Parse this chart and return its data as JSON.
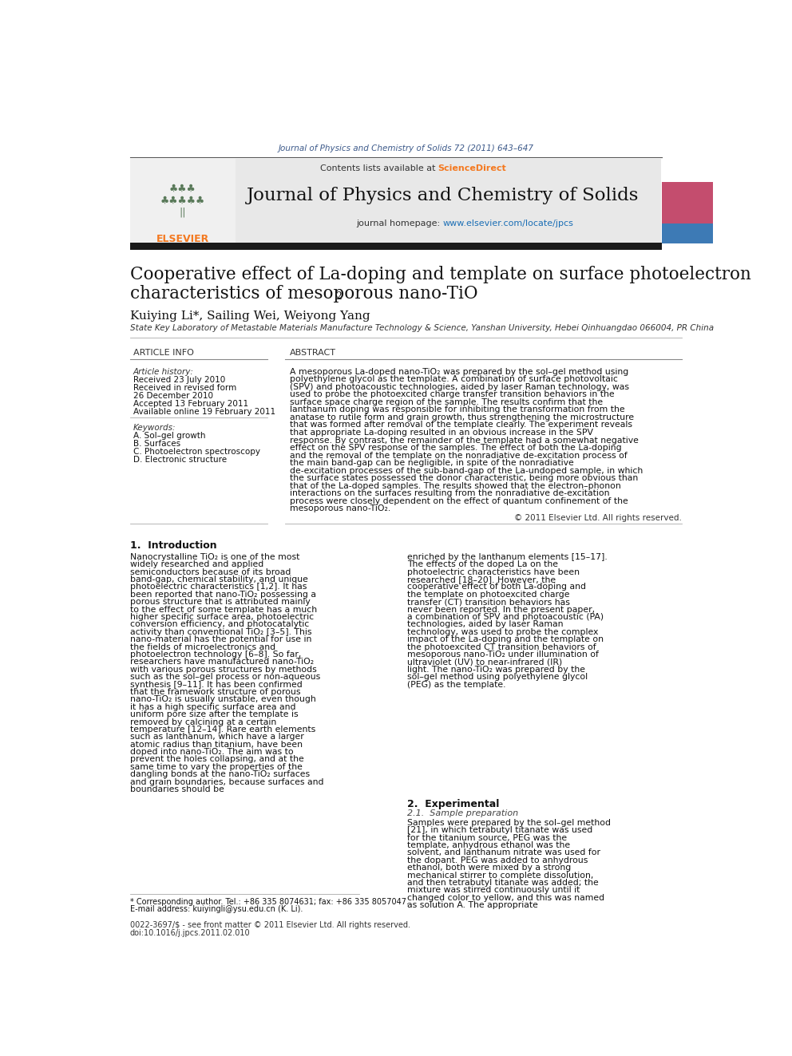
{
  "page_bg": "#ffffff",
  "top_journal_ref": "Journal of Physics and Chemistry of Solids 72 (2011) 643–647",
  "top_journal_ref_color": "#3d5a8a",
  "header_bg": "#e8e8e8",
  "header_contents": "Contents lists available at ",
  "header_sciencedirect": "ScienceDirect",
  "header_sciencedirect_color": "#f47920",
  "journal_title": "Journal of Physics and Chemistry of Solids",
  "journal_url_prefix": "journal homepage: ",
  "journal_url_link": "www.elsevier.com/locate/jpcs",
  "journal_url_color": "#1a6eb5",
  "article_title_line1": "Cooperative effect of La-doping and template on surface photoelectron",
  "article_title_line2": "characteristics of mesoporous nano-TiO",
  "article_title_line2_sub": "2",
  "authors": "Kuiying Li*, Sailing Wei, Weiyong Yang",
  "affiliation": "State Key Laboratory of Metastable Materials Manufacture Technology & Science, Yanshan University, Hebei Qinhuangdao 066004, PR China",
  "article_info_label": "ARTICLE INFO",
  "abstract_label": "ABSTRACT",
  "article_history_label": "Article history:",
  "received1": "Received 23 July 2010",
  "received2": "Received in revised form",
  "received2b": "26 December 2010",
  "accepted": "Accepted 13 February 2011",
  "available": "Available online 19 February 2011",
  "keywords_label": "Keywords:",
  "keyword_a": "A. Sol–gel growth",
  "keyword_b": "B. Surfaces",
  "keyword_c": "C. Photoelectron spectroscopy",
  "keyword_d": "D. Electronic structure",
  "abstract_text": "A mesoporous La-doped nano-TiO₂ was prepared by the sol–gel method using polyethylene glycol as the template. A combination of surface photovoltaic (SPV) and photoacoustic technologies, aided by laser Raman technology, was used to probe the photoexcited charge transfer transition behaviors in the surface space charge region of the sample. The results confirm that the lanthanum doping was responsible for inhibiting the transformation from the anatase to rutile form and grain growth, thus strengthening the microstructure that was formed after removal of the template clearly. The experiment reveals that appropriate La-doping resulted in an obvious increase in the SPV response. By contrast, the remainder of the template had a somewhat negative effect on the SPV response of the samples. The effect of both the La-doping and the removal of the template on the nonradiative de-excitation process of the main band-gap can be negligible, in spite of the nonradiative de-excitation processes of the sub-band-gap of the La-undoped sample, in which the surface states possessed the donor characteristic, being more obvious than that of the La-doped samples. The results showed that the electron–phonon interactions on the surfaces resulting from the nonradiative de-excitation process were closely dependent on the effect of quantum confinement of the mesoporous nano-TiO₂.",
  "copyright": "© 2011 Elsevier Ltd. All rights reserved.",
  "section1_title": "1.  Introduction",
  "intro_col1_p1": "Nanocrystalline TiO₂ is one of the most widely researched and applied semiconductors because of its broad band-gap, chemical stability, and unique photoelectric characteristics [1,2]. It has been reported that nano-TiO₂ possessing a porous structure that is attributed mainly to the effect of some template has a much higher specific surface area, photoelectric conversion efficiency, and photocatalytic activity than conventional TiO₂ [3–5]. This nano-material has the potential for use in the fields of microelectronics and photoelectron technology [6–8]. So far, researchers have manufactured nano-TiO₂ with various porous structures by methods such as the sol–gel process or non-aqueous synthesis [9–11]. It has been confirmed that the framework structure of porous nano-TiO₂ is usually unstable, even though it has a high specific surface area and uniform pore size after the template is removed by calcining at a certain temperature [12–14]. Rare earth elements such as lanthanum, which have a larger atomic radius than titanium, have been doped into nano-TiO₂. The aim was to prevent the holes collapsing, and at the same time to vary the properties of the dangling bonds at the nano-TiO₂ surfaces and grain boundaries, because surfaces and boundaries should be",
  "intro_col2_p1": "enriched by the lanthanum elements [15–17]. The effects of the doped La on the photoelectric characteristics have been researched [18–20]. However, the cooperative effect of both La-doping and the template on photoexcited charge transfer (CT) transition behaviors has never been reported. In the present paper, a combination of SPV and photoacoustic (PA) technologies, aided by laser Raman technology, was used to probe the complex impact of the La-doping and the template on the photoexcited CT transition behaviors of mesoporous nano-TiO₂ under illumination of ultraviolet (UV) to near-infrared (IR) light. The nano-TiO₂ was prepared by the sol–gel method using polyethylene glycol (PEG) as the template.",
  "section2_title": "2.  Experimental",
  "section21_title": "2.1.  Sample preparation",
  "experimental_col2": "Samples were prepared by the sol–gel method [21], in which tetrabutyl titanate was used for the titanium source, PEG was the template, anhydrous ethanol was the solvent, and lanthanum nitrate was used for the dopant. PEG was added to anhydrous ethanol, both were mixed by a strong mechanical stirrer to complete dissolution, and then tetrabutyl titanate was added; the mixture was stirred continuously until it changed color to yellow, and this was named as solution A. The appropriate",
  "footnote_star": "* Corresponding author. Tel.: +86 335 8074631; fax: +86 335 8057047.",
  "footnote_email": "E-mail address: kuiyingli@ysu.edu.cn (K. Li).",
  "footer_issn": "0022-3697/$ - see front matter © 2011 Elsevier Ltd. All rights reserved.",
  "footer_doi": "doi:10.1016/j.jpcs.2011.02.010",
  "dark_bar_color": "#1a1a1a",
  "header_border_color": "#555555",
  "elsevier_color": "#f47920",
  "right_img_pink": "#c44d6e",
  "right_img_blue": "#3d7ab5"
}
